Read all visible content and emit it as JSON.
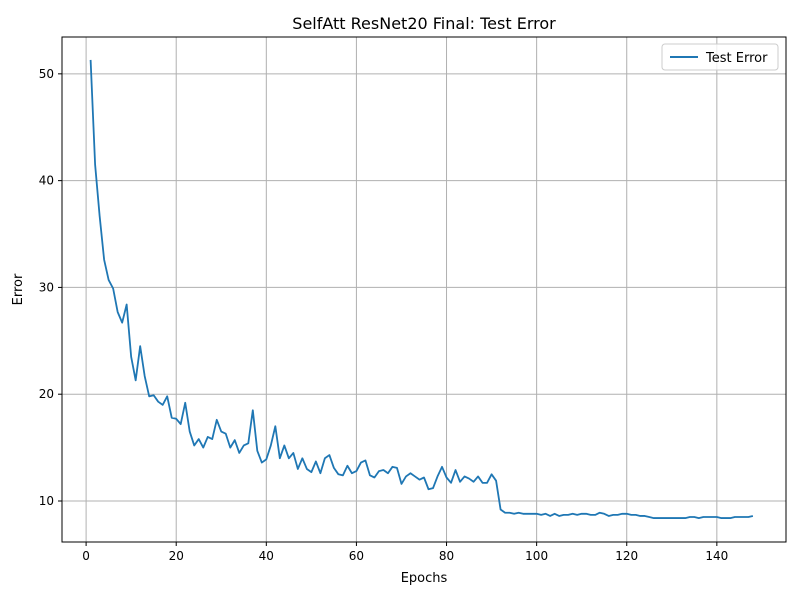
{
  "chart_data": {
    "type": "line",
    "title": "SelfAtt ResNet20 Final: Test Error",
    "xlabel": "Epochs",
    "ylabel": "Error",
    "xlim": [
      -5.35,
      155.35
    ],
    "ylim": [
      6.16,
      53.45
    ],
    "xticks": [
      0,
      20,
      40,
      60,
      80,
      100,
      120,
      140
    ],
    "yticks": [
      10,
      20,
      30,
      40,
      50
    ],
    "grid": true,
    "legend_position": "top-right",
    "series": [
      {
        "name": "Test Error",
        "color": "#1f77b4",
        "x_start": 1,
        "values": [
          51.3,
          41.5,
          36.7,
          32.6,
          30.7,
          29.9,
          27.7,
          26.7,
          28.4,
          23.5,
          21.3,
          24.5,
          21.7,
          19.8,
          19.9,
          19.3,
          19.0,
          19.8,
          17.8,
          17.7,
          17.2,
          19.2,
          16.5,
          15.2,
          15.8,
          15.0,
          16.0,
          15.8,
          17.6,
          16.5,
          16.3,
          15.0,
          15.7,
          14.5,
          15.2,
          15.4,
          18.5,
          14.7,
          13.6,
          13.9,
          15.2,
          17.0,
          14.0,
          15.2,
          14.0,
          14.5,
          13.0,
          14.0,
          13.0,
          12.7,
          13.7,
          12.6,
          14.0,
          14.3,
          13.1,
          12.5,
          12.4,
          13.3,
          12.6,
          12.8,
          13.6,
          13.8,
          12.4,
          12.2,
          12.8,
          12.9,
          12.6,
          13.2,
          13.1,
          11.6,
          12.3,
          12.6,
          12.3,
          12.0,
          12.2,
          11.1,
          11.2,
          12.3,
          13.2,
          12.2,
          11.7,
          12.9,
          11.8,
          12.3,
          12.1,
          11.8,
          12.3,
          11.7,
          11.7,
          12.5,
          11.9,
          9.2,
          8.9,
          8.9,
          8.8,
          8.9,
          8.8,
          8.8,
          8.8,
          8.8,
          8.7,
          8.8,
          8.6,
          8.8,
          8.6,
          8.7,
          8.7,
          8.8,
          8.7,
          8.8,
          8.8,
          8.7,
          8.7,
          8.9,
          8.8,
          8.6,
          8.7,
          8.7,
          8.8,
          8.8,
          8.7,
          8.7,
          8.6,
          8.6,
          8.5,
          8.4,
          8.4,
          8.4,
          8.4,
          8.4,
          8.4,
          8.4,
          8.4,
          8.5,
          8.5,
          8.4,
          8.5,
          8.5,
          8.5,
          8.5,
          8.4,
          8.4,
          8.4,
          8.5,
          8.5,
          8.5,
          8.5,
          8.6
        ]
      }
    ]
  }
}
